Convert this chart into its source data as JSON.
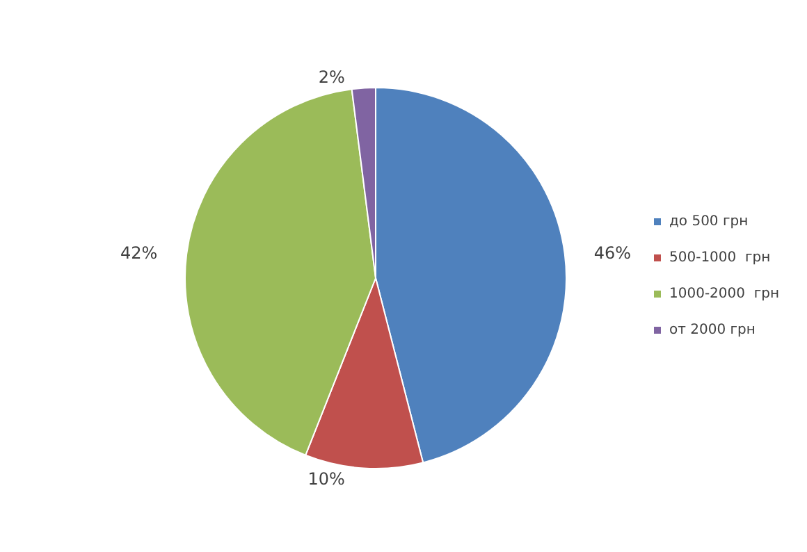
{
  "chart_data": {
    "type": "pie",
    "categories": [
      "до 500 грн",
      "500-1000  грн",
      "1000-2000  грн",
      "от 2000 грн"
    ],
    "values": [
      46,
      10,
      42,
      2
    ],
    "value_labels": [
      "46%",
      "10%",
      "42%",
      "2%"
    ],
    "colors": [
      "#4f81bd",
      "#c0504d",
      "#9bbb59",
      "#8064a2"
    ],
    "legend": "right"
  }
}
